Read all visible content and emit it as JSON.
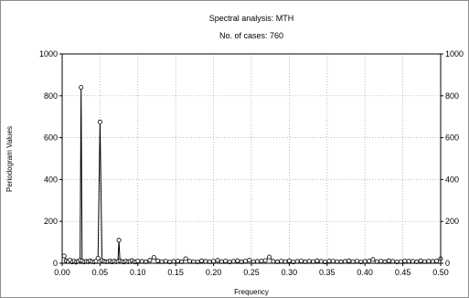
{
  "chart_data": {
    "type": "line",
    "title": "Spectral analysis: MTH",
    "subtitle": "No. of cases: 760",
    "xlabel": "Frequency",
    "ylabel": "Periodogram Values",
    "xlim": [
      0,
      0.5
    ],
    "ylim": [
      0,
      1000
    ],
    "x_ticks": [
      "0.00",
      "0.05",
      "0.10",
      "0.15",
      "0.20",
      "0.25",
      "0.30",
      "0.35",
      "0.40",
      "0.45",
      "0.50"
    ],
    "y_ticks": [
      "0",
      "200",
      "400",
      "600",
      "800",
      "1000"
    ],
    "grid": true,
    "peaks": [
      {
        "x": 0.025,
        "y": 840
      },
      {
        "x": 0.05,
        "y": 675
      },
      {
        "x": 0.075,
        "y": 110
      }
    ],
    "series": [
      {
        "x": [
          0.0026,
          0.0053,
          0.0079,
          0.0105,
          0.0132,
          0.0158,
          0.0184,
          0.0211,
          0.0237,
          0.025,
          0.0263,
          0.0289,
          0.0316,
          0.0342,
          0.0368,
          0.0395,
          0.0421,
          0.0447,
          0.0474,
          0.05,
          0.0526,
          0.0553,
          0.0579,
          0.0605,
          0.0632,
          0.0658,
          0.0684,
          0.0711,
          0.0737,
          0.075,
          0.0763,
          0.0789,
          0.0816,
          0.0842,
          0.0868,
          0.0895,
          0.0921,
          0.0947,
          0.0974,
          0.1,
          0.1053,
          0.1105,
          0.1158,
          0.1211,
          0.1263,
          0.1316,
          0.1368,
          0.1421,
          0.1474,
          0.1526,
          0.1579,
          0.1632,
          0.1684,
          0.1737,
          0.1789,
          0.1842,
          0.1895,
          0.1947,
          0.2,
          0.2053,
          0.2105,
          0.2158,
          0.2211,
          0.2263,
          0.2316,
          0.2368,
          0.2421,
          0.2474,
          0.2526,
          0.2579,
          0.2632,
          0.2684,
          0.2737,
          0.2789,
          0.2842,
          0.2895,
          0.2947,
          0.3,
          0.3053,
          0.3105,
          0.3158,
          0.3211,
          0.3263,
          0.3316,
          0.3368,
          0.3421,
          0.3474,
          0.3526,
          0.3579,
          0.3632,
          0.3684,
          0.3737,
          0.3789,
          0.3842,
          0.3895,
          0.3947,
          0.4,
          0.4053,
          0.4105,
          0.4158,
          0.4211,
          0.4263,
          0.4316,
          0.4368,
          0.4421,
          0.4474,
          0.4526,
          0.4579,
          0.4632,
          0.4684,
          0.4737,
          0.4789,
          0.4842,
          0.4895,
          0.4947,
          0.5
        ],
        "y": [
          35,
          12,
          8,
          15,
          6,
          10,
          5,
          9,
          14,
          840,
          11,
          6,
          9,
          7,
          12,
          8,
          6,
          10,
          24,
          675,
          13,
          9,
          7,
          8,
          11,
          6,
          10,
          7,
          9,
          110,
          12,
          8,
          6,
          10,
          7,
          9,
          13,
          8,
          6,
          11,
          9,
          7,
          14,
          28,
          12,
          8,
          10,
          6,
          9,
          11,
          7,
          22,
          10,
          8,
          6,
          12,
          9,
          7,
          10,
          14,
          8,
          11,
          6,
          9,
          12,
          7,
          10,
          15,
          8,
          9,
          11,
          13,
          30,
          9,
          7,
          10,
          8,
          12,
          6,
          9,
          11,
          7,
          10,
          8,
          12,
          9,
          6,
          11,
          10,
          8,
          7,
          9,
          12,
          8,
          10,
          6,
          9,
          11,
          18,
          8,
          10,
          7,
          12,
          9,
          6,
          8,
          11,
          10,
          9,
          7,
          12,
          8,
          10,
          9,
          11,
          22
        ]
      }
    ]
  }
}
